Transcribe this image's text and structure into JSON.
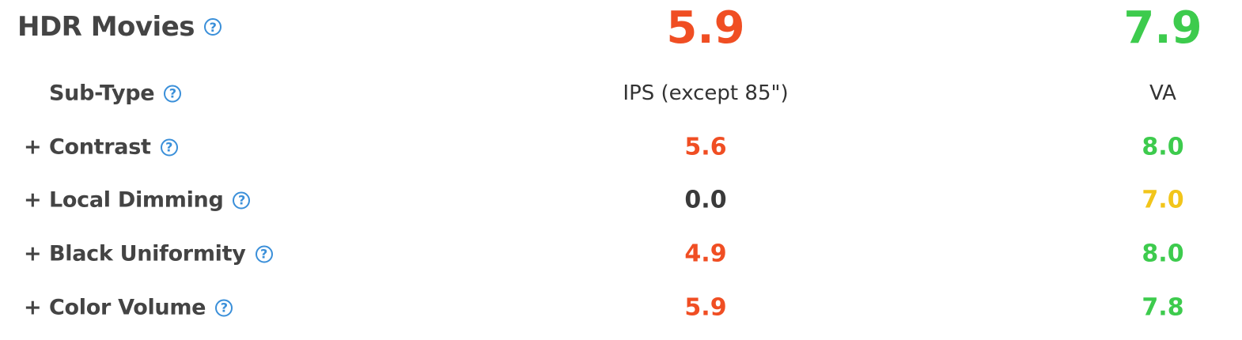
{
  "header": {
    "title": "HDR Movies",
    "help_icon": "?",
    "scores": [
      {
        "text": "5.9",
        "color": "#f04e23"
      },
      {
        "text": "7.9",
        "color": "#3dcb4d"
      }
    ]
  },
  "table": {
    "rows": [
      {
        "label": "Sub-Type",
        "cells": [
          {
            "text": "IPS (except 85\")",
            "color": "#333333"
          },
          {
            "text": "VA",
            "color": "#333333"
          }
        ],
        "plain": true
      },
      {
        "prefix": "+",
        "label": "Contrast",
        "cells": [
          {
            "text": "5.6",
            "color": "#f04e23"
          },
          {
            "text": "8.0",
            "color": "#3dcb4d"
          }
        ]
      },
      {
        "prefix": "+",
        "label": "Local Dimming",
        "cells": [
          {
            "text": "0.0",
            "color": "#3a3a3a"
          },
          {
            "text": "7.0",
            "color": "#f2c51a"
          }
        ]
      },
      {
        "prefix": "+",
        "label": "Black Uniformity",
        "cells": [
          {
            "text": "4.9",
            "color": "#f04e23"
          },
          {
            "text": "8.0",
            "color": "#3dcb4d"
          }
        ]
      },
      {
        "prefix": "+",
        "label": "Color Volume",
        "cells": [
          {
            "text": "5.9",
            "color": "#f04e23"
          },
          {
            "text": "7.8",
            "color": "#3dcb4d"
          }
        ]
      }
    ]
  }
}
